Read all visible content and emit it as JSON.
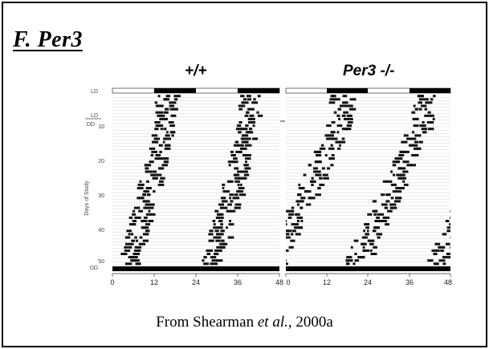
{
  "slide": {
    "title": "F. Per3",
    "caption_pre": "From Shearman ",
    "caption_italic": "et al.",
    "caption_post": ", 2000a"
  },
  "figure": {
    "panels": [
      {
        "label": "+/+"
      },
      {
        "label": "Per3 -/-"
      }
    ],
    "row_labels": {
      "ld_top": "LD",
      "ld_mid": "LD",
      "dd_mid": "DD",
      "dd_bottom": "DD"
    },
    "y_axis_title": "Days of Study",
    "y_ticks": [
      "10",
      "20",
      "30",
      "40",
      "50"
    ],
    "x_ticks": [
      "0",
      "12",
      "24",
      "36",
      "48"
    ]
  }
}
